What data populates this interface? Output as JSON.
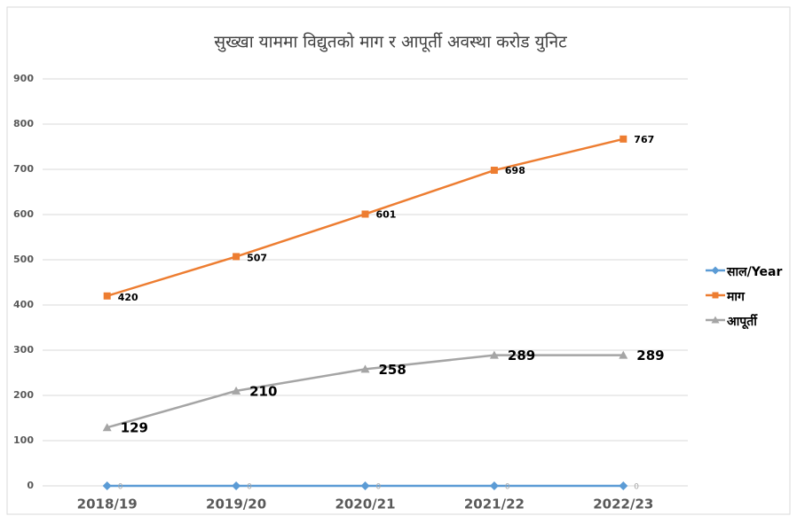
{
  "chart_data": {
    "type": "line",
    "title": "सुख्खा याममा विद्युतको माग र आपूर्ती अवस्था करोड युनिट",
    "categories": [
      "2018/19",
      "2019/20",
      "2020/21",
      "2021/22",
      "2022/23"
    ],
    "series": [
      {
        "name": "साल/Year",
        "color": "#5b9bd5",
        "marker": "diamond",
        "values": [
          0,
          0,
          0,
          0,
          0
        ]
      },
      {
        "name": "माग",
        "color": "#ed7d31",
        "marker": "square",
        "values": [
          420,
          507,
          601,
          698,
          767
        ]
      },
      {
        "name": "आपूर्ती",
        "color": "#a5a5a5",
        "marker": "triangle",
        "values": [
          129,
          210,
          258,
          289,
          289
        ]
      }
    ],
    "ylim": [
      0,
      900
    ],
    "yticks": [
      0,
      100,
      200,
      300,
      400,
      500,
      600,
      700,
      800,
      900
    ],
    "grid": true,
    "legend": "right"
  }
}
